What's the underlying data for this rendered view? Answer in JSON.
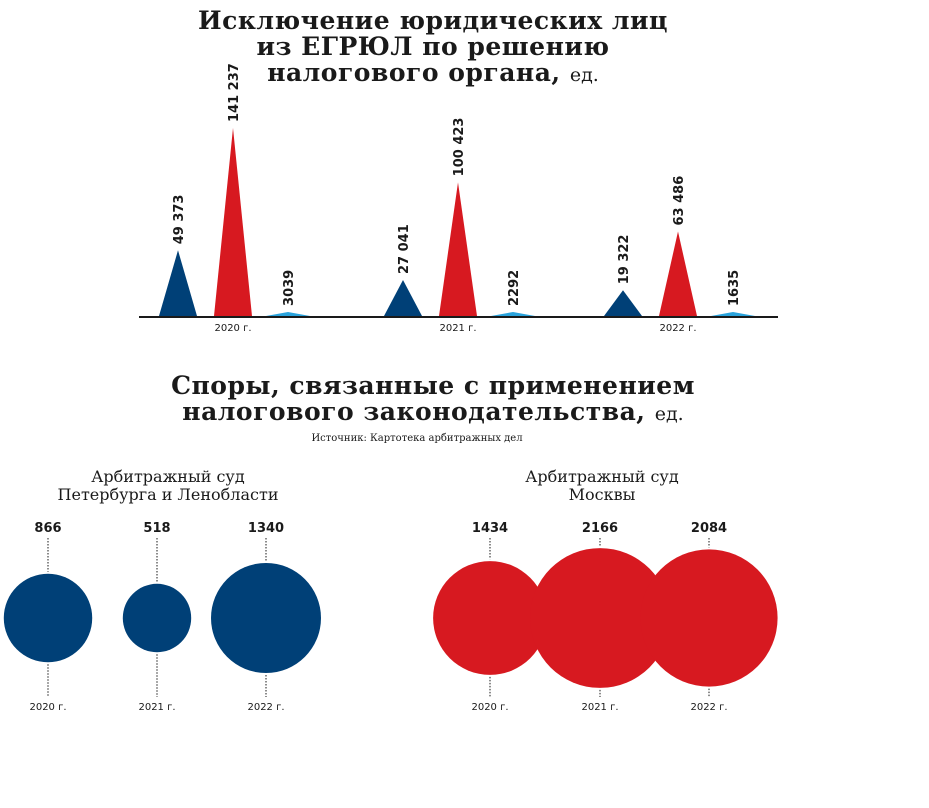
{
  "chart_data": [
    {
      "type": "area",
      "title_lines": [
        "Исключение юридических лиц",
        "из ЕГРЮЛ по решению",
        "налогового органа,"
      ],
      "unit": "ед.",
      "categories": [
        "2020 г.",
        "2021 г.",
        "2022 г."
      ],
      "series": [
        {
          "color": "#004077",
          "values": [
            49373,
            27041,
            19322
          ],
          "labels": [
            "49 373",
            "27 041",
            "19 322"
          ]
        },
        {
          "color": "#d71920",
          "values": [
            141237,
            100423,
            63486
          ],
          "labels": [
            "141 237",
            "100 423",
            "63 486"
          ]
        },
        {
          "color": "#2aa3dc",
          "values": [
            3039,
            2292,
            1635
          ],
          "labels": [
            "3039",
            "2292",
            "1635"
          ]
        }
      ]
    },
    {
      "type": "bubble",
      "title_lines": [
        "Споры, связанные с применением",
        "налогового законодательства,"
      ],
      "unit": "ед.",
      "source": "Источник: Картотека арбитражных дел",
      "groups": [
        {
          "name_lines": [
            "Арбитражный суд",
            "Петербурга и Ленобласти"
          ],
          "color": "#004077",
          "categories": [
            "2020 г.",
            "2021 г.",
            "2022 г."
          ],
          "values": [
            866,
            518,
            1340
          ]
        },
        {
          "name_lines": [
            "Арбитражный суд",
            "Москвы"
          ],
          "color": "#d71920",
          "categories": [
            "2020 г.",
            "2021 г.",
            "2022 г."
          ],
          "values": [
            1434,
            2166,
            2084
          ]
        }
      ]
    }
  ]
}
